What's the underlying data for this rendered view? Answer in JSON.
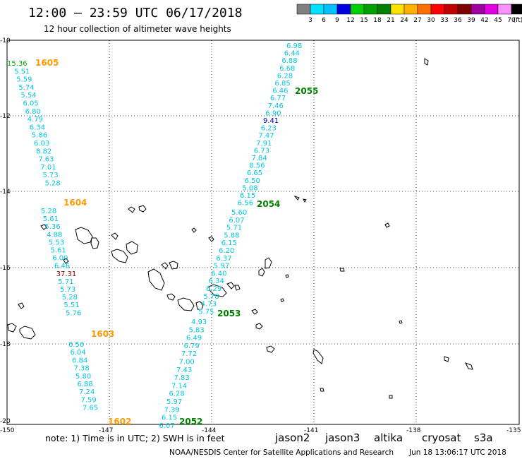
{
  "header": {
    "title": "12:00 – 23:59 UTC 06/17/2018",
    "subtitle": "12 hour collection of altimeter wave heights"
  },
  "color_scale": {
    "labels": [
      "3",
      "6",
      "9",
      "12",
      "15",
      "18",
      "21",
      "24",
      "27",
      "30",
      "33",
      "36",
      "39",
      "42",
      "45",
      "70",
      "(ft)"
    ],
    "colors": [
      "#808080",
      "#00e0ff",
      "#00c0ff",
      "#0000e0",
      "#00d000",
      "#00a000",
      "#008000",
      "#ffe000",
      "#ffb000",
      "#ff7000",
      "#ff0000",
      "#c00000",
      "#800000",
      "#a000a0",
      "#e000e0",
      "#ff90ff",
      "#000000"
    ]
  },
  "axes": {
    "lat_labels": [
      "-10",
      "-12",
      "-14",
      "-16",
      "-18",
      "-20"
    ],
    "lon_labels": [
      "-150",
      "-147",
      "-144",
      "-141",
      "-138",
      "-135"
    ]
  },
  "tracks": [
    {
      "pass_label": "1605",
      "pass_color": "#ff9a00",
      "values": [
        {
          "v": "15.36",
          "c": "#00aa00"
        },
        {
          "v": "5.51",
          "c": "#00c8e0"
        },
        {
          "v": "5.59",
          "c": "#00c8e0"
        },
        {
          "v": "5.74",
          "c": "#00c8e0"
        },
        {
          "v": "5.54",
          "c": "#00c8e0"
        },
        {
          "v": "6.05",
          "c": "#00c8e0"
        },
        {
          "v": "6.80",
          "c": "#00c8e0"
        },
        {
          "v": "4.79",
          "c": "#00c8e0"
        },
        {
          "v": "6.34",
          "c": "#00c8e0"
        },
        {
          "v": "5.86",
          "c": "#00c8e0"
        },
        {
          "v": "6.03",
          "c": "#00c8e0"
        },
        {
          "v": "8.82",
          "c": "#00c8e0"
        },
        {
          "v": "7.63",
          "c": "#00c8e0"
        },
        {
          "v": "7.01",
          "c": "#00c8e0"
        },
        {
          "v": "5.73",
          "c": "#00c8e0"
        },
        {
          "v": "5.28",
          "c": "#00c8e0"
        }
      ]
    },
    {
      "pass_label": "1604",
      "pass_color": "#ff9a00",
      "values": [
        {
          "v": "5.28",
          "c": "#00c8e0"
        },
        {
          "v": "5.61",
          "c": "#00c8e0"
        },
        {
          "v": "5.36",
          "c": "#00c8e0"
        },
        {
          "v": "4.88",
          "c": "#00c8e0"
        },
        {
          "v": "5.53",
          "c": "#00c8e0"
        },
        {
          "v": "5.61",
          "c": "#00c8e0"
        },
        {
          "v": "6.00",
          "c": "#00c8e0"
        },
        {
          "v": "6.46",
          "c": "#00c8e0"
        },
        {
          "v": "37.31",
          "c": "#800000"
        },
        {
          "v": "5.71",
          "c": "#00c8e0"
        },
        {
          "v": "5.73",
          "c": "#00c8e0"
        },
        {
          "v": "5.28",
          "c": "#00c8e0"
        },
        {
          "v": "5.51",
          "c": "#00c8e0"
        },
        {
          "v": "5.76",
          "c": "#00c8e0"
        }
      ]
    },
    {
      "pass_label": "1603",
      "pass_color": "#ff9a00",
      "values": [
        {
          "v": "6.56",
          "c": "#00c8e0"
        },
        {
          "v": "6.04",
          "c": "#00c8e0"
        },
        {
          "v": "6.84",
          "c": "#00c8e0"
        },
        {
          "v": "7.38",
          "c": "#00c8e0"
        },
        {
          "v": "5.80",
          "c": "#00c8e0"
        },
        {
          "v": "6.88",
          "c": "#00c8e0"
        },
        {
          "v": "7.24",
          "c": "#00c8e0"
        },
        {
          "v": "7.59",
          "c": "#00c8e0"
        },
        {
          "v": "7.65",
          "c": "#00c8e0"
        }
      ]
    },
    {
      "pass_label": "1602",
      "pass_color": "#ff9a00",
      "values": []
    },
    {
      "pass_label": "2055",
      "pass_color": "#008000",
      "values": [
        {
          "v": "6.98",
          "c": "#00c8e0"
        },
        {
          "v": "6.44",
          "c": "#00c8e0"
        },
        {
          "v": "6.88",
          "c": "#00c8e0"
        },
        {
          "v": "6.68",
          "c": "#00c8e0"
        },
        {
          "v": "6.28",
          "c": "#00c8e0"
        },
        {
          "v": "6.85",
          "c": "#00c8e0"
        },
        {
          "v": "6.46",
          "c": "#00c8e0"
        },
        {
          "v": "6.77",
          "c": "#00c8e0"
        },
        {
          "v": "7.46",
          "c": "#00c8e0"
        },
        {
          "v": "6.90",
          "c": "#00c8e0"
        },
        {
          "v": "9.41",
          "c": "#0000c0"
        },
        {
          "v": "6.23",
          "c": "#00c8e0"
        },
        {
          "v": "7.47",
          "c": "#00c8e0"
        },
        {
          "v": "7.91",
          "c": "#00c8e0"
        },
        {
          "v": "6.73",
          "c": "#00c8e0"
        },
        {
          "v": "7.84",
          "c": "#00c8e0"
        },
        {
          "v": "8.56",
          "c": "#00c8e0"
        },
        {
          "v": "6.65",
          "c": "#00c8e0"
        },
        {
          "v": "6.50",
          "c": "#00c8e0"
        },
        {
          "v": "5.08",
          "c": "#00c8e0"
        },
        {
          "v": "6.15",
          "c": "#00c8e0"
        },
        {
          "v": "6.56",
          "c": "#00c8e0"
        }
      ]
    },
    {
      "pass_label": "2054",
      "pass_color": "#008000",
      "values": [
        {
          "v": "5.60",
          "c": "#00c8e0"
        },
        {
          "v": "6.07",
          "c": "#00c8e0"
        },
        {
          "v": "5.71",
          "c": "#00c8e0"
        },
        {
          "v": "5.88",
          "c": "#00c8e0"
        },
        {
          "v": "6.15",
          "c": "#00c8e0"
        },
        {
          "v": "6.20",
          "c": "#00c8e0"
        },
        {
          "v": "6.37",
          "c": "#00c8e0"
        },
        {
          "v": "5.97",
          "c": "#00c8e0"
        },
        {
          "v": "6.40",
          "c": "#00c8e0"
        },
        {
          "v": "6.34",
          "c": "#00c8e0"
        },
        {
          "v": "6.29",
          "c": "#00c8e0"
        },
        {
          "v": "5.78",
          "c": "#00c8e0"
        },
        {
          "v": "4.73",
          "c": "#00c8e0"
        },
        {
          "v": "5.75",
          "c": "#00c8e0"
        }
      ]
    },
    {
      "pass_label": "2053",
      "pass_color": "#008000",
      "values": [
        {
          "v": "4.93",
          "c": "#00c8e0"
        },
        {
          "v": "5.83",
          "c": "#00c8e0"
        },
        {
          "v": "6.49",
          "c": "#00c8e0"
        },
        {
          "v": "6.79",
          "c": "#00c8e0"
        },
        {
          "v": "7.72",
          "c": "#00c8e0"
        },
        {
          "v": "7.00",
          "c": "#00c8e0"
        },
        {
          "v": "7.43",
          "c": "#00c8e0"
        },
        {
          "v": "7.83",
          "c": "#00c8e0"
        },
        {
          "v": "7.14",
          "c": "#00c8e0"
        },
        {
          "v": "6.28",
          "c": "#00c8e0"
        },
        {
          "v": "5.97",
          "c": "#00c8e0"
        },
        {
          "v": "7.39",
          "c": "#00c8e0"
        },
        {
          "v": "6.15",
          "c": "#00c8e0"
        },
        {
          "v": "6.07",
          "c": "#00c8e0"
        }
      ]
    },
    {
      "pass_label": "2052",
      "pass_color": "#008000",
      "values": []
    }
  ],
  "footer": {
    "note": "note: 1) Time is in UTC; 2) SWH is in feet",
    "satellites": [
      {
        "name": "jason2",
        "color": "#0000e0"
      },
      {
        "name": "jason3",
        "color": "#008000"
      },
      {
        "name": "altika",
        "color": "#ff9a00"
      },
      {
        "name": "cryosat",
        "color": "#ff0000"
      },
      {
        "name": "s3a",
        "color": "#800000"
      }
    ],
    "credit": "NOAA/NESDIS Center for Satellite Applications and Research",
    "timestamp": "Jun 18 13:06:17 UTC 2018"
  }
}
